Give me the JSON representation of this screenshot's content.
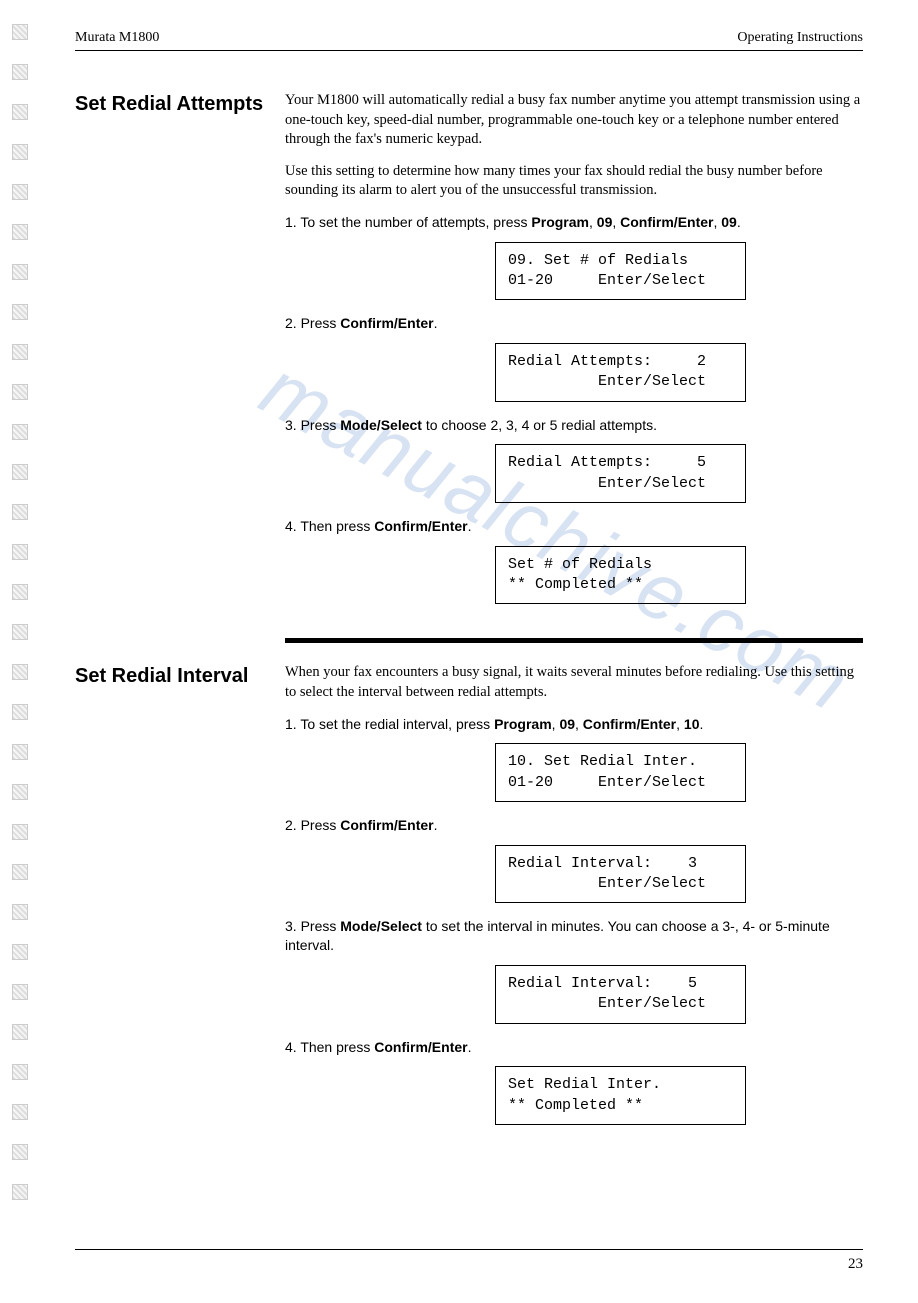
{
  "header": {
    "left": "Murata M1800",
    "right": "Operating Instructions"
  },
  "watermark": "manualchive.com",
  "section1": {
    "title": "Set Redial Attempts",
    "intro_p1": "Your M1800 will automatically redial a busy fax number anytime you attempt transmission using a one-touch key, speed-dial number, programmable one-touch key or a telephone number entered through the fax's numeric keypad.",
    "intro_p2": "Use this setting to determine how many times your fax should redial the busy number before sounding its alarm to alert you of the unsuccessful transmission.",
    "step1_a": "1. To set the number of attempts, press ",
    "step1_b1": "Program",
    "step1_c1": ", ",
    "step1_b2": "09",
    "step1_c2": ", ",
    "step1_b3": "Confirm/Enter",
    "step1_c3": ", ",
    "step1_b4": "09",
    "step1_c4": ".",
    "lcd1": "09. Set # of Redials\n01-20     Enter/Select",
    "step2_a": "2. Press ",
    "step2_b": "Confirm/Enter",
    "step2_c": ".",
    "lcd2": "Redial Attempts:     2\n          Enter/Select",
    "step3_a": "3. Press ",
    "step3_b": "Mode/Select",
    "step3_c": " to choose 2, 3, 4 or 5 redial attempts.",
    "lcd3": "Redial Attempts:     5\n          Enter/Select",
    "step4_a": "4. Then press ",
    "step4_b": "Confirm/Enter",
    "step4_c": ".",
    "lcd4": "Set # of Redials\n** Completed **"
  },
  "section2": {
    "title": "Set Redial Interval",
    "intro_p1": "When your fax encounters a busy signal, it waits several minutes before redialing. Use this setting to select the interval between redial attempts.",
    "step1_a": "1. To set the redial interval, press ",
    "step1_b1": "Program",
    "step1_c1": ", ",
    "step1_b2": "09",
    "step1_c2": ", ",
    "step1_b3": "Confirm/Enter",
    "step1_c3": ", ",
    "step1_b4": "10",
    "step1_c4": ".",
    "lcd1": "10. Set Redial Inter.\n01-20     Enter/Select",
    "step2_a": "2. Press ",
    "step2_b": "Confirm/Enter",
    "step2_c": ".",
    "lcd2": "Redial Interval:    3\n          Enter/Select",
    "step3_a": "3. Press ",
    "step3_b": "Mode/Select",
    "step3_c": " to set the interval in minutes. You can choose a 3-, 4- or 5-minute interval.",
    "lcd3": "Redial Interval:    5\n          Enter/Select",
    "step4_a": "4. Then press ",
    "step4_b": "Confirm/Enter",
    "step4_c": ".",
    "lcd4": "Set Redial Inter.\n** Completed **"
  },
  "page_number": "23"
}
